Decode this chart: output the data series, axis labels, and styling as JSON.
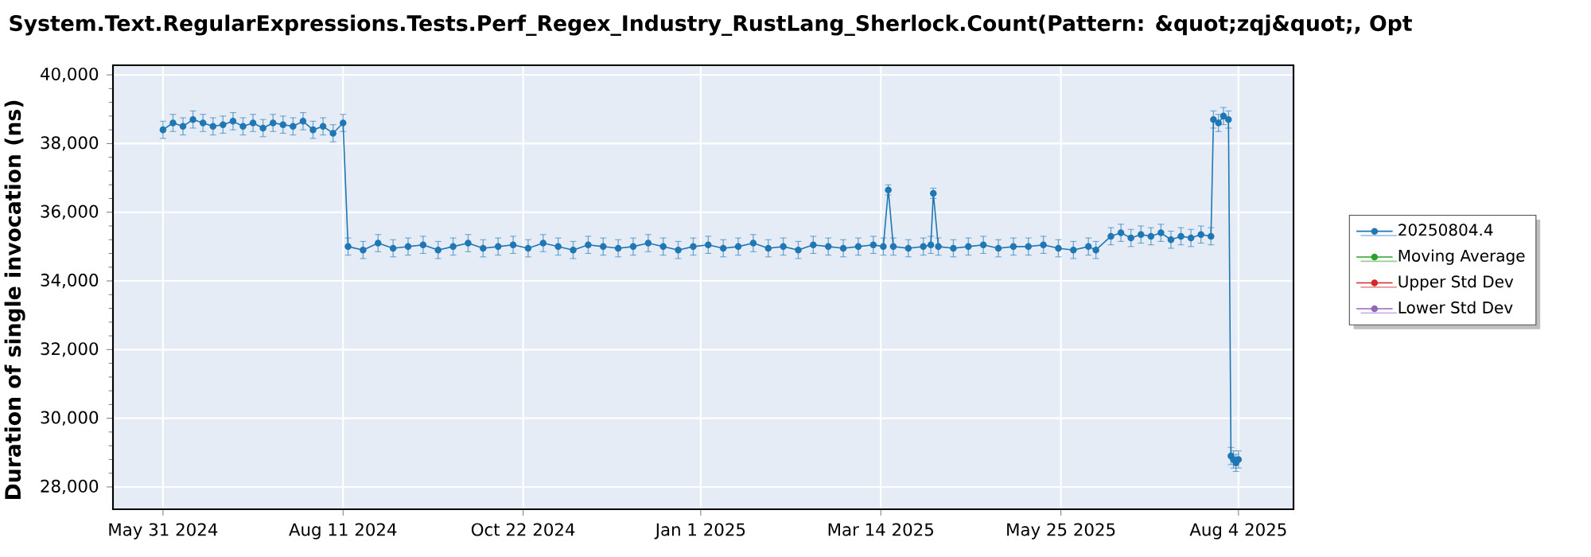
{
  "chart_data": {
    "type": "line",
    "title": "System.Text.RegularExpressions.Tests.Perf_Regex_Industry_RustLang_Sherlock.Count(Pattern: &quot;zqj&quot;, Opt",
    "ylabel": "Duration of single invocation (ns)",
    "x": [
      "2024-05-31",
      "2024-06-04",
      "2024-06-08",
      "2024-06-12",
      "2024-06-16",
      "2024-06-20",
      "2024-06-24",
      "2024-06-28",
      "2024-07-02",
      "2024-07-06",
      "2024-07-10",
      "2024-07-14",
      "2024-07-18",
      "2024-07-22",
      "2024-07-26",
      "2024-07-30",
      "2024-08-03",
      "2024-08-07",
      "2024-08-11",
      "2024-08-13",
      "2024-08-19",
      "2024-08-25",
      "2024-08-31",
      "2024-09-06",
      "2024-09-12",
      "2024-09-18",
      "2024-09-24",
      "2024-09-30",
      "2024-10-06",
      "2024-10-12",
      "2024-10-18",
      "2024-10-24",
      "2024-10-30",
      "2024-11-05",
      "2024-11-11",
      "2024-11-17",
      "2024-11-23",
      "2024-11-29",
      "2024-12-05",
      "2024-12-11",
      "2024-12-17",
      "2024-12-23",
      "2024-12-29",
      "2025-01-04",
      "2025-01-10",
      "2025-01-16",
      "2025-01-22",
      "2025-01-28",
      "2025-02-03",
      "2025-02-09",
      "2025-02-15",
      "2025-02-21",
      "2025-02-27",
      "2025-03-05",
      "2025-03-11",
      "2025-03-15",
      "2025-03-17",
      "2025-03-19",
      "2025-03-25",
      "2025-03-31",
      "2025-04-03",
      "2025-04-04",
      "2025-04-06",
      "2025-04-12",
      "2025-04-18",
      "2025-04-24",
      "2025-04-30",
      "2025-05-06",
      "2025-05-12",
      "2025-05-18",
      "2025-05-24",
      "2025-05-30",
      "2025-06-05",
      "2025-06-08",
      "2025-06-14",
      "2025-06-18",
      "2025-06-22",
      "2025-06-26",
      "2025-06-30",
      "2025-07-04",
      "2025-07-08",
      "2025-07-12",
      "2025-07-16",
      "2025-07-20",
      "2025-07-24",
      "2025-07-25",
      "2025-07-27",
      "2025-07-29",
      "2025-07-31",
      "2025-08-01",
      "2025-08-02",
      "2025-08-03",
      "2025-08-04"
    ],
    "series": [
      {
        "name": "20250804.4",
        "color": "#1f77b4",
        "values": [
          38400,
          38600,
          38500,
          38700,
          38600,
          38500,
          38550,
          38650,
          38500,
          38600,
          38450,
          38600,
          38550,
          38500,
          38650,
          38400,
          38500,
          38300,
          38600,
          35000,
          34900,
          35100,
          34950,
          35000,
          35050,
          34900,
          35000,
          35100,
          34950,
          35000,
          35050,
          34950,
          35100,
          35000,
          34900,
          35050,
          35000,
          34950,
          35000,
          35100,
          35000,
          34900,
          35000,
          35050,
          34950,
          35000,
          35100,
          34950,
          35000,
          34900,
          35050,
          35000,
          34950,
          35000,
          35050,
          35000,
          36650,
          35000,
          34950,
          35000,
          35050,
          36550,
          35000,
          34950,
          35000,
          35050,
          34950,
          35000,
          35000,
          35050,
          34950,
          34900,
          35000,
          34900,
          35300,
          35400,
          35250,
          35350,
          35300,
          35400,
          35200,
          35300,
          35250,
          35350,
          35300,
          38700,
          38600,
          38800,
          38700,
          28900,
          28800,
          28700,
          28800
        ],
        "errors": [
          250,
          250,
          250,
          250,
          250,
          250,
          250,
          250,
          250,
          250,
          250,
          250,
          250,
          250,
          250,
          250,
          250,
          250,
          250,
          250,
          250,
          250,
          250,
          250,
          250,
          250,
          250,
          250,
          250,
          250,
          250,
          250,
          250,
          250,
          250,
          250,
          250,
          250,
          250,
          250,
          250,
          250,
          250,
          250,
          250,
          250,
          250,
          250,
          250,
          250,
          250,
          250,
          250,
          250,
          250,
          250,
          150,
          250,
          250,
          250,
          250,
          150,
          250,
          250,
          250,
          250,
          250,
          250,
          250,
          250,
          250,
          250,
          250,
          250,
          250,
          250,
          250,
          250,
          250,
          250,
          250,
          250,
          250,
          250,
          250,
          250,
          250,
          250,
          250,
          250,
          250,
          250,
          250
        ]
      },
      {
        "name": "Moving Average",
        "color": "#2ca02c",
        "values": [
          null,
          null,
          null,
          null,
          null,
          null,
          null,
          null,
          null,
          null,
          null,
          null,
          null,
          null,
          null,
          null,
          null,
          null,
          null,
          null,
          null,
          null,
          null,
          null,
          null,
          null,
          null,
          null,
          null,
          null,
          null,
          null,
          null,
          null,
          null,
          null,
          null,
          null,
          null,
          null,
          null,
          null,
          null,
          null,
          null,
          null,
          null,
          null,
          null,
          null,
          null,
          null,
          null,
          null,
          null,
          null,
          null,
          null,
          null,
          null,
          null,
          null,
          null,
          null,
          null,
          null,
          null,
          null,
          null,
          null,
          null,
          null,
          null,
          null,
          null,
          null,
          null,
          null,
          null,
          null,
          null,
          null,
          null,
          null,
          null,
          null,
          null,
          null,
          null,
          null,
          null,
          null,
          null
        ]
      },
      {
        "name": "Upper Std Dev",
        "color": "#d62728",
        "values": [
          null,
          null,
          null,
          null,
          null,
          null,
          null,
          null,
          null,
          null,
          null,
          null,
          null,
          null,
          null,
          null,
          null,
          null,
          null,
          null,
          null,
          null,
          null,
          null,
          null,
          null,
          null,
          null,
          null,
          null,
          null,
          null,
          null,
          null,
          null,
          null,
          null,
          null,
          null,
          null,
          null,
          null,
          null,
          null,
          null,
          null,
          null,
          null,
          null,
          null,
          null,
          null,
          null,
          null,
          null,
          null,
          null,
          null,
          null,
          null,
          null,
          null,
          null,
          null,
          null,
          null,
          null,
          null,
          null,
          null,
          null,
          null,
          null,
          null,
          null,
          null,
          null,
          null,
          null,
          null,
          null,
          null,
          null,
          null,
          null,
          null,
          null,
          null,
          null,
          null,
          null,
          null,
          null
        ]
      },
      {
        "name": "Lower Std Dev",
        "color": "#9467bd",
        "values": [
          null,
          null,
          null,
          null,
          null,
          null,
          null,
          null,
          null,
          null,
          null,
          null,
          null,
          null,
          null,
          null,
          null,
          null,
          null,
          null,
          null,
          null,
          null,
          null,
          null,
          null,
          null,
          null,
          null,
          null,
          null,
          null,
          null,
          null,
          null,
          null,
          null,
          null,
          null,
          null,
          null,
          null,
          null,
          null,
          null,
          null,
          null,
          null,
          null,
          null,
          null,
          null,
          null,
          null,
          null,
          null,
          null,
          null,
          null,
          null,
          null,
          null,
          null,
          null,
          null,
          null,
          null,
          null,
          null,
          null,
          null,
          null,
          null,
          null,
          null,
          null,
          null,
          null,
          null,
          null,
          null,
          null,
          null,
          null,
          null,
          null,
          null,
          null,
          null,
          null,
          null,
          null,
          null
        ]
      }
    ],
    "xlim": [
      "2024-05-11",
      "2025-08-26"
    ],
    "xticks": [
      {
        "value": "2024-05-31",
        "label": "May 31 2024"
      },
      {
        "value": "2024-08-11",
        "label": "Aug 11 2024"
      },
      {
        "value": "2024-10-22",
        "label": "Oct 22 2024"
      },
      {
        "value": "2025-01-01",
        "label": "Jan 1 2025"
      },
      {
        "value": "2025-03-14",
        "label": "Mar 14 2025"
      },
      {
        "value": "2025-05-25",
        "label": "May 25 2025"
      },
      {
        "value": "2025-08-04",
        "label": "Aug 4 2025"
      }
    ],
    "ylim": [
      27350,
      40280
    ],
    "yticks": [
      {
        "value": 28000,
        "label": "28,000"
      },
      {
        "value": 30000,
        "label": "30,000"
      },
      {
        "value": 32000,
        "label": "32,000"
      },
      {
        "value": 34000,
        "label": "34,000"
      },
      {
        "value": 36000,
        "label": "36,000"
      },
      {
        "value": 38000,
        "label": "38,000"
      },
      {
        "value": 40000,
        "label": "40,000"
      }
    ],
    "grid": true,
    "legend": "right",
    "marker": "circle",
    "line_style": "solid"
  }
}
